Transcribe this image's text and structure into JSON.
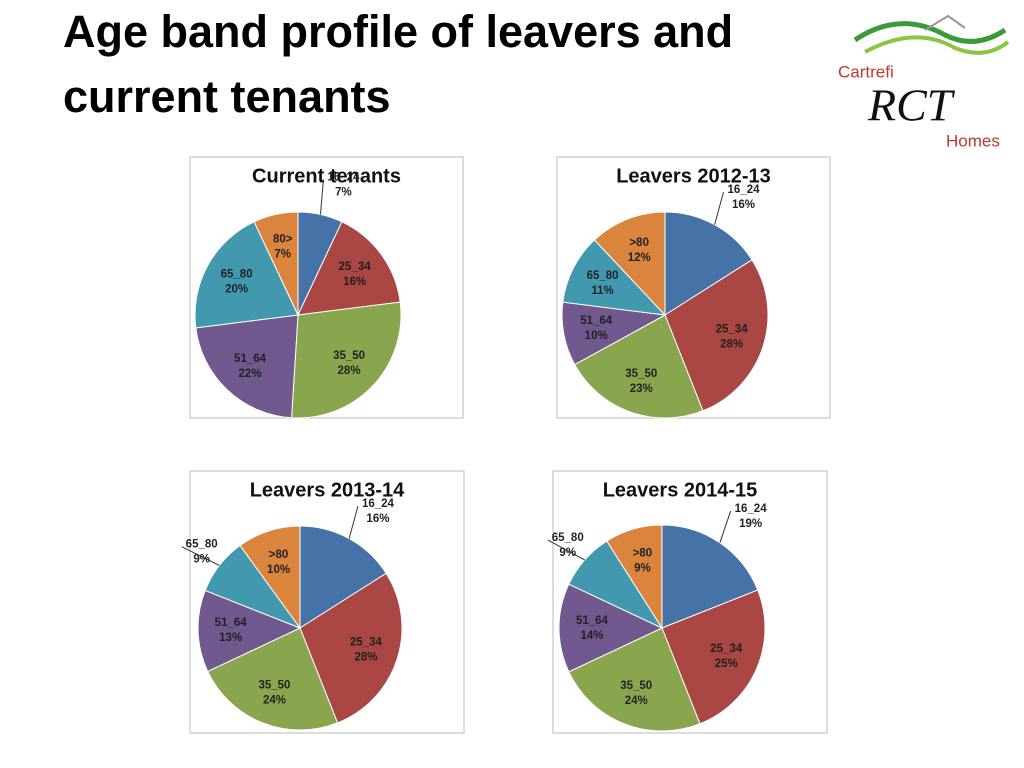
{
  "title": "Age band profile of leavers and current tenants",
  "logo": {
    "top": "Cartrefi",
    "middle": "RCT",
    "bottom": "Homes"
  },
  "chart_data": [
    {
      "type": "pie",
      "title": "Current tenants",
      "categories": [
        "16_24",
        "25_34",
        "35_50",
        "51_64",
        "65_80",
        "80>"
      ],
      "values": [
        7,
        16,
        28,
        22,
        20,
        7
      ],
      "value_labels": [
        "7%",
        "16%",
        "28%",
        "22%",
        "20%",
        "7%"
      ],
      "colors": [
        "#4572a7",
        "#aa4643",
        "#89a54e",
        "#71588f",
        "#4198af",
        "#db843d"
      ]
    },
    {
      "type": "pie",
      "title": "Leavers 2012-13",
      "categories": [
        "16_24",
        "25_34",
        "35_50",
        "51_64",
        "65_80",
        ">80"
      ],
      "values": [
        16,
        28,
        23,
        10,
        11,
        12
      ],
      "value_labels": [
        "16%",
        "28%",
        "23%",
        "10%",
        "11%",
        "12%"
      ],
      "colors": [
        "#4572a7",
        "#aa4643",
        "#89a54e",
        "#71588f",
        "#4198af",
        "#db843d"
      ]
    },
    {
      "type": "pie",
      "title": "Leavers 2013-14",
      "categories": [
        "16_24",
        "25_34",
        "35_50",
        "51_64",
        "65_80",
        ">80"
      ],
      "values": [
        16,
        28,
        24,
        13,
        9,
        10
      ],
      "value_labels": [
        "16%",
        "28%",
        "24%",
        "13%",
        "9%",
        "10%"
      ],
      "colors": [
        "#4572a7",
        "#aa4643",
        "#89a54e",
        "#71588f",
        "#4198af",
        "#db843d"
      ]
    },
    {
      "type": "pie",
      "title": "Leavers 2014-15",
      "categories": [
        "16_24",
        "25_34",
        "35_50",
        "51_64",
        "65_80",
        ">80"
      ],
      "values": [
        19,
        25,
        24,
        14,
        9,
        9
      ],
      "value_labels": [
        "19%",
        "25%",
        "24%",
        "14%",
        "9%",
        "9%"
      ],
      "colors": [
        "#4572a7",
        "#aa4643",
        "#89a54e",
        "#71588f",
        "#4198af",
        "#db843d"
      ]
    }
  ]
}
